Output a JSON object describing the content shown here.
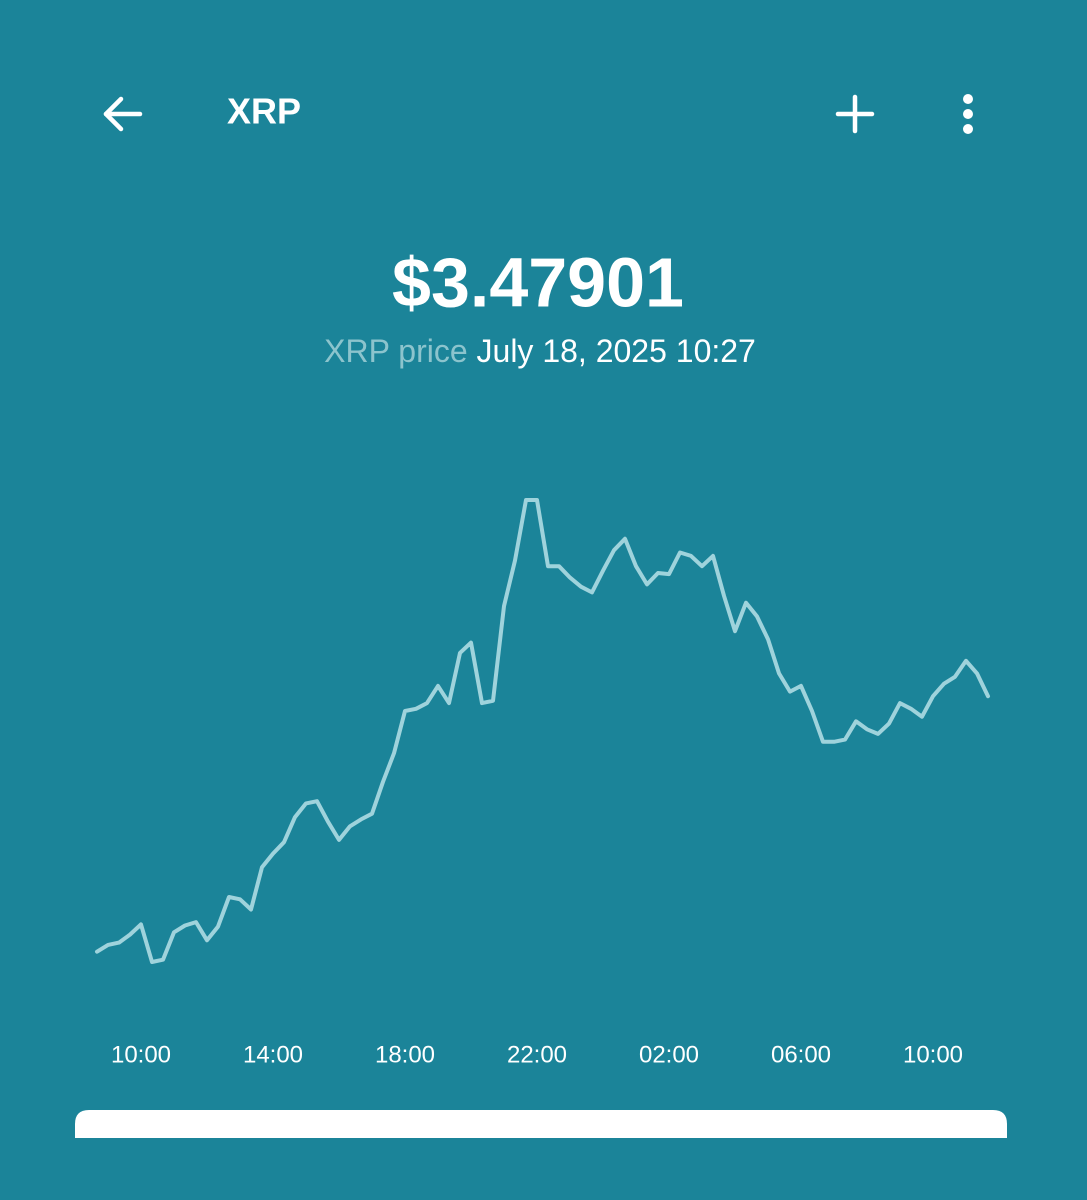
{
  "header": {
    "title": "XRP"
  },
  "price": "$3.47901",
  "price_label": "XRP price",
  "timestamp": "July 18, 2025 10:27",
  "chart_data": {
    "type": "line",
    "color": "#9fd3dc",
    "categories": [
      null,
      null,
      null,
      null,
      "10:00",
      null,
      null,
      null,
      null,
      null,
      null,
      null,
      null,
      null,
      null,
      null,
      "14:00",
      null,
      null,
      null,
      null,
      null,
      null,
      null,
      null,
      null,
      null,
      null,
      "18:00",
      null,
      null,
      null,
      null,
      null,
      null,
      null,
      null,
      null,
      null,
      null,
      "22:00",
      null,
      null,
      null,
      null,
      null,
      null,
      null,
      null,
      null,
      null,
      null,
      "02:00",
      null,
      null,
      null,
      null,
      null,
      null,
      null,
      null,
      null,
      null,
      null,
      "06:00",
      null,
      null,
      null,
      null,
      null,
      null,
      null,
      null,
      null,
      null,
      null,
      "10:00",
      null,
      null,
      null,
      null,
      null
    ],
    "values": [
      3.255,
      3.261,
      3.263,
      3.27,
      3.279,
      3.246,
      3.248,
      3.272,
      3.278,
      3.281,
      3.265,
      3.277,
      3.303,
      3.301,
      3.292,
      3.329,
      3.341,
      3.351,
      3.373,
      3.385,
      3.387,
      3.369,
      3.353,
      3.365,
      3.371,
      3.376,
      3.404,
      3.429,
      3.466,
      3.468,
      3.473,
      3.488,
      3.473,
      3.517,
      3.526,
      3.473,
      3.475,
      3.558,
      3.598,
      3.651,
      3.651,
      3.593,
      3.593,
      3.583,
      3.575,
      3.57,
      3.589,
      3.607,
      3.617,
      3.593,
      3.577,
      3.587,
      3.586,
      3.605,
      3.602,
      3.593,
      3.602,
      3.567,
      3.536,
      3.561,
      3.549,
      3.529,
      3.499,
      3.483,
      3.488,
      3.466,
      3.439,
      3.439,
      3.441,
      3.457,
      3.45,
      3.446,
      3.455,
      3.473,
      3.468,
      3.461,
      3.479,
      3.49,
      3.496,
      3.51,
      3.499,
      3.479
    ]
  }
}
